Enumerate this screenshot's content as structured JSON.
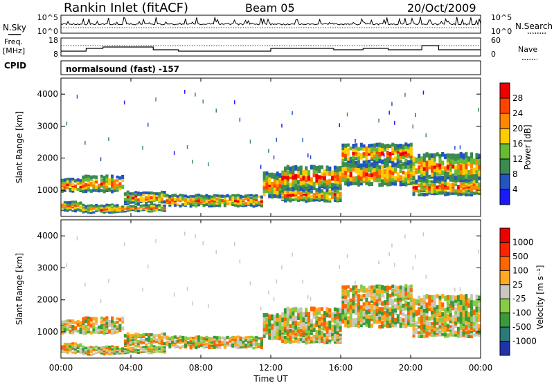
{
  "header": {
    "station": "Rankin Inlet (fitACF)",
    "beam": "Beam 05",
    "date": "20/Oct/2009"
  },
  "left_labels": {
    "nsky": "N.Sky",
    "freq": "Freq.",
    "freq_unit": "[MHz]",
    "cpid": "CPID"
  },
  "right_labels": {
    "nsearch": "N.Search",
    "nave": "Nave"
  },
  "cpid_text": "normalsound (fast) -157",
  "noise_panel": {
    "left_ticks": [
      "10^5",
      "10^0"
    ],
    "right_ticks": [
      "10^5",
      "10^0"
    ]
  },
  "freq_panel": {
    "left_ticks": [
      "18",
      "8"
    ],
    "right_ticks": [
      "60",
      "0"
    ]
  },
  "chart_data": [
    {
      "type": "heatmap",
      "title": "",
      "xlabel": "Time UT",
      "ylabel": "Slant Range [km]",
      "x_ticks": [
        "00:00",
        "04:00",
        "08:00",
        "12:00",
        "16:00",
        "20:00",
        "00:00"
      ],
      "y_ticks": [
        "1000",
        "2000",
        "3000",
        "4000"
      ],
      "xlim_hours": [
        0,
        24
      ],
      "ylim_km": [
        180,
        4500
      ],
      "colorbar_label": "Power [dB]",
      "colorbar_ticks": [
        "4",
        "8",
        "12",
        "16",
        "20",
        "24",
        "28"
      ],
      "colors": [
        "#1a1aff",
        "#2255c0",
        "#3c8a50",
        "#66bb33",
        "#ffcc00",
        "#ff8800",
        "#ff4400",
        "#ee0000"
      ]
    },
    {
      "type": "heatmap",
      "title": "",
      "xlabel": "Time UT",
      "ylabel": "Slant Range [km]",
      "x_ticks": [
        "00:00",
        "04:00",
        "08:00",
        "12:00",
        "16:00",
        "20:00",
        "00:00"
      ],
      "y_ticks": [
        "1000",
        "2000",
        "3000",
        "4000"
      ],
      "xlim_hours": [
        0,
        24
      ],
      "ylim_km": [
        180,
        4500
      ],
      "colorbar_label": "Velocity [m s⁻¹]",
      "colorbar_ticks": [
        "1000",
        "500",
        "100",
        "25",
        "-25",
        "-100",
        "-500",
        "-1000"
      ],
      "colors": [
        "#2233aa",
        "#2a7a7a",
        "#3a9a3a",
        "#88cc44",
        "#c8c8c0",
        "#ffaa22",
        "#ff6600",
        "#ff2200",
        "#ee0000"
      ]
    }
  ]
}
